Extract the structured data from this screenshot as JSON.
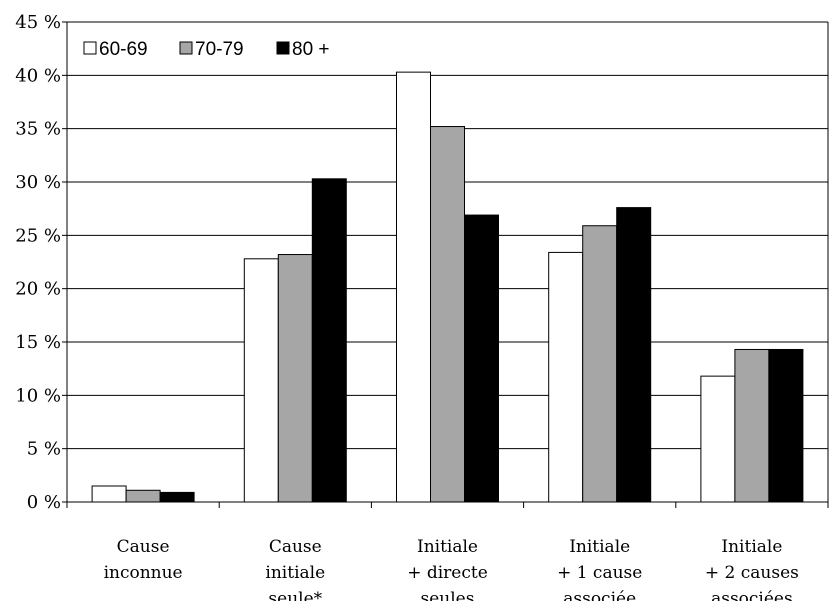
{
  "chart_data": {
    "type": "bar",
    "categories": [
      [
        "Cause",
        "inconnue"
      ],
      [
        "Cause",
        "initiale",
        "seule*"
      ],
      [
        "Initiale",
        "+ directe",
        "seules"
      ],
      [
        "Initiale",
        "+ 1 cause",
        "associée"
      ],
      [
        "Initiale",
        "+ 2 causes",
        "associées"
      ]
    ],
    "series": [
      {
        "name": "60-69",
        "color": "#ffffff",
        "values": [
          1.5,
          22.8,
          40.3,
          23.4,
          11.8
        ]
      },
      {
        "name": "70-79",
        "color": "#a6a6a6",
        "values": [
          1.1,
          23.2,
          35.2,
          25.9,
          14.3
        ]
      },
      {
        "name": "80 +",
        "color": "#000000",
        "values": [
          0.9,
          30.3,
          26.9,
          27.6,
          14.3
        ]
      }
    ],
    "ylim": [
      0,
      45
    ],
    "yticks": [
      0,
      5,
      10,
      15,
      20,
      25,
      30,
      35,
      40,
      45
    ],
    "ytick_labels": [
      "0 %",
      "5 %",
      "10 %",
      "15 %",
      "20 %",
      "25 %",
      "30 %",
      "35 %",
      "40 %",
      "45 %"
    ],
    "grid": true,
    "legend": "top-left"
  }
}
